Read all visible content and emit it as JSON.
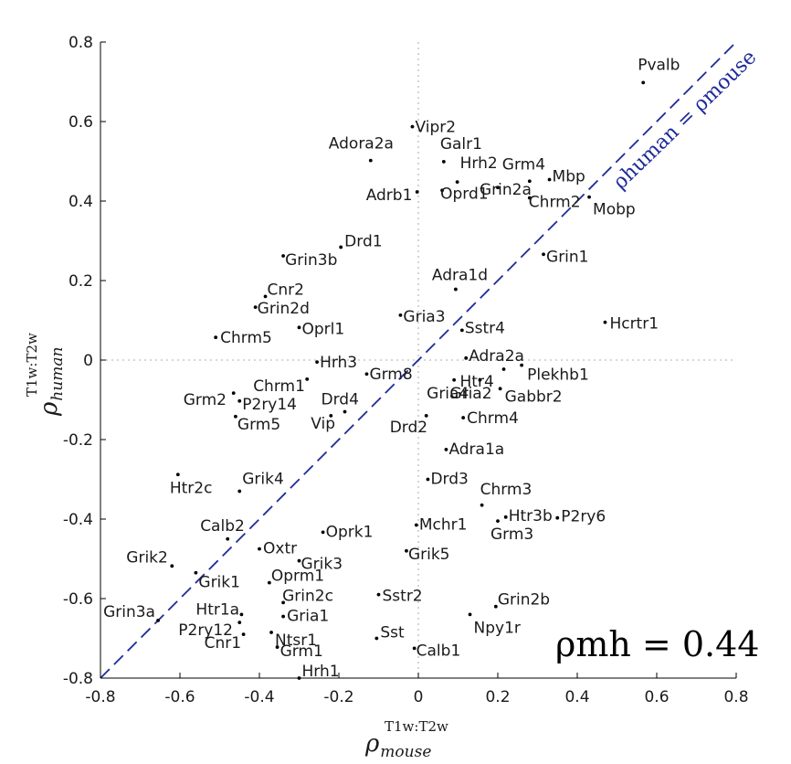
{
  "chart_data": {
    "type": "scatter",
    "xlim": [
      -0.8,
      0.8
    ],
    "ylim": [
      -0.8,
      0.8
    ],
    "xticks": [
      -0.8,
      -0.6,
      -0.4,
      -0.2,
      0,
      0.2,
      0.4,
      0.6,
      0.8
    ],
    "yticks": [
      -0.8,
      -0.6,
      -0.4,
      -0.2,
      0,
      0.2,
      0.4,
      0.6,
      0.8
    ],
    "xtick_labels": [
      "-0.8",
      "-0.6",
      "-0.4",
      "-0.2",
      "0",
      "0.2",
      "0.4",
      "0.6",
      "0.8"
    ],
    "ytick_labels": [
      "-0.8",
      "-0.6",
      "-0.4",
      "-0.2",
      "0",
      "0.2",
      "0.4",
      "0.6",
      "0.8"
    ],
    "xlabel": {
      "symbol": "ρ",
      "superscript": "T1w:T2w",
      "subscript": "mouse"
    },
    "ylabel": {
      "symbol": "ρ",
      "superscript": "T1w:T2w",
      "subscript": "human"
    },
    "reference_line": {
      "x": [
        -0.8,
        0.8
      ],
      "y": [
        -0.8,
        0.8
      ],
      "label": "ρhuman = ρmouse",
      "color": "#1f2a9a"
    },
    "annotation": "ρmh = 0.44",
    "grid": false,
    "points": [
      {
        "label": "Pvalb",
        "x": 0.566,
        "y": 0.698
      },
      {
        "label": "Vipr2",
        "x": -0.015,
        "y": 0.587
      },
      {
        "label": "Adora2a",
        "x": -0.12,
        "y": 0.502
      },
      {
        "label": "Galr1",
        "x": 0.064,
        "y": 0.499
      },
      {
        "label": "Hrh2",
        "x": 0.098,
        "y": 0.448
      },
      {
        "label": "Grm4",
        "x": 0.28,
        "y": 0.45
      },
      {
        "label": "Mbp",
        "x": 0.33,
        "y": 0.454
      },
      {
        "label": "Adrb1",
        "x": -0.003,
        "y": 0.423
      },
      {
        "label": "Oprd1",
        "x": 0.06,
        "y": 0.427
      },
      {
        "label": "Grin2a",
        "x": 0.2,
        "y": 0.434
      },
      {
        "label": "Chrm2",
        "x": 0.28,
        "y": 0.408
      },
      {
        "label": "Mobp",
        "x": 0.43,
        "y": 0.41
      },
      {
        "label": "Drd1",
        "x": -0.195,
        "y": 0.284
      },
      {
        "label": "Grin3b",
        "x": -0.34,
        "y": 0.262
      },
      {
        "label": "Grin1",
        "x": 0.315,
        "y": 0.266
      },
      {
        "label": "Adra1d",
        "x": 0.094,
        "y": 0.178
      },
      {
        "label": "Cnr2",
        "x": -0.385,
        "y": 0.16
      },
      {
        "label": "Grin2d",
        "x": -0.41,
        "y": 0.133
      },
      {
        "label": "Gria3",
        "x": -0.045,
        "y": 0.113
      },
      {
        "label": "Oprl1",
        "x": -0.3,
        "y": 0.082
      },
      {
        "label": "Hcrtr1",
        "x": 0.47,
        "y": 0.095
      },
      {
        "label": "Sstr4",
        "x": 0.11,
        "y": 0.075
      },
      {
        "label": "Chrm5",
        "x": -0.51,
        "y": 0.057
      },
      {
        "label": "Hrh3",
        "x": -0.255,
        "y": -0.005
      },
      {
        "label": "Grm8",
        "x": -0.13,
        "y": -0.035
      },
      {
        "label": "Adra2a",
        "x": 0.12,
        "y": 0.005
      },
      {
        "label": "Htr4",
        "x": 0.215,
        "y": -0.023
      },
      {
        "label": "Plekhb1",
        "x": 0.26,
        "y": -0.013
      },
      {
        "label": "Chrm1",
        "x": -0.28,
        "y": -0.048
      },
      {
        "label": "Gria4",
        "x": 0.09,
        "y": -0.05
      },
      {
        "label": "Gria2",
        "x": 0.155,
        "y": -0.05
      },
      {
        "label": "Gabbr2",
        "x": 0.206,
        "y": -0.072
      },
      {
        "label": "Grm2",
        "x": -0.465,
        "y": -0.083
      },
      {
        "label": "P2ry14",
        "x": -0.45,
        "y": -0.103
      },
      {
        "label": "Drd4",
        "x": -0.185,
        "y": -0.13
      },
      {
        "label": "Vip",
        "x": -0.22,
        "y": -0.14
      },
      {
        "label": "Grm5",
        "x": -0.46,
        "y": -0.142
      },
      {
        "label": "Drd2",
        "x": 0.02,
        "y": -0.14
      },
      {
        "label": "Chrm4",
        "x": 0.113,
        "y": -0.145
      },
      {
        "label": "Adra1a",
        "x": 0.07,
        "y": -0.225
      },
      {
        "label": "Htr2c",
        "x": -0.605,
        "y": -0.288
      },
      {
        "label": "Grik4",
        "x": -0.45,
        "y": -0.33
      },
      {
        "label": "Drd3",
        "x": 0.024,
        "y": -0.3
      },
      {
        "label": "Chrm3",
        "x": 0.16,
        "y": -0.365
      },
      {
        "label": "Htr3b",
        "x": 0.22,
        "y": -0.395
      },
      {
        "label": "P2ry6",
        "x": 0.35,
        "y": -0.397
      },
      {
        "label": "Grm3",
        "x": 0.2,
        "y": -0.405
      },
      {
        "label": "Calb2",
        "x": -0.48,
        "y": -0.45
      },
      {
        "label": "Oprk1",
        "x": -0.24,
        "y": -0.433
      },
      {
        "label": "Mchr1",
        "x": -0.005,
        "y": -0.415
      },
      {
        "label": "Oxtr",
        "x": -0.4,
        "y": -0.475
      },
      {
        "label": "Grik2",
        "x": -0.62,
        "y": -0.518
      },
      {
        "label": "Grik3",
        "x": -0.3,
        "y": -0.505
      },
      {
        "label": "Grik5",
        "x": -0.03,
        "y": -0.48
      },
      {
        "label": "Grik1",
        "x": -0.56,
        "y": -0.535
      },
      {
        "label": "Oprm1",
        "x": -0.375,
        "y": -0.56
      },
      {
        "label": "Sstr2",
        "x": -0.1,
        "y": -0.59
      },
      {
        "label": "Grin2c",
        "x": -0.34,
        "y": -0.61
      },
      {
        "label": "Htr1a",
        "x": -0.445,
        "y": -0.64
      },
      {
        "label": "Grin2b",
        "x": 0.195,
        "y": -0.62
      },
      {
        "label": "Gria1",
        "x": -0.34,
        "y": -0.645
      },
      {
        "label": "Npy1r",
        "x": 0.13,
        "y": -0.64
      },
      {
        "label": "Grin3a",
        "x": -0.655,
        "y": -0.655
      },
      {
        "label": "P2ry12",
        "x": -0.45,
        "y": -0.66
      },
      {
        "label": "Ntsr1",
        "x": -0.37,
        "y": -0.685
      },
      {
        "label": "Cnr1",
        "x": -0.44,
        "y": -0.69
      },
      {
        "label": "Sst",
        "x": -0.105,
        "y": -0.7
      },
      {
        "label": "Grm1",
        "x": -0.355,
        "y": -0.722
      },
      {
        "label": "Calb1",
        "x": -0.01,
        "y": -0.725
      },
      {
        "label": "Hrh1",
        "x": -0.3,
        "y": -0.8
      }
    ]
  }
}
